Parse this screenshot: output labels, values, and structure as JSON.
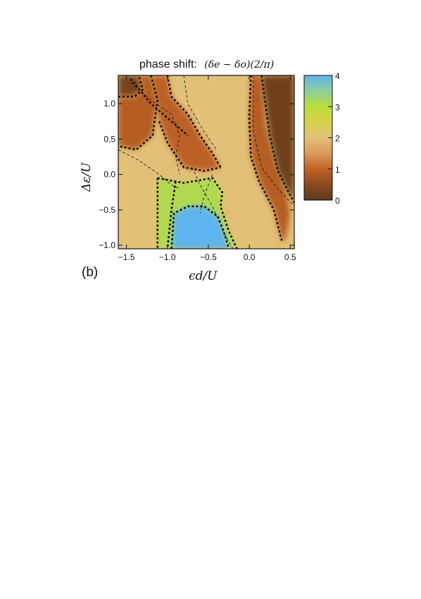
{
  "chart_data": {
    "type": "heatmap",
    "title_prefix": "phase shift:",
    "title_formula": "(δe − δo)(2/π)",
    "xlabel": "ϵd/U",
    "ylabel": "Δε/U",
    "panel_label": "(b)",
    "xlim": [
      -1.6,
      0.55
    ],
    "ylim": [
      -1.05,
      1.4
    ],
    "x_ticks": [
      {
        "value": -1.5,
        "label": "−1.5"
      },
      {
        "value": -1.0,
        "label": "−1.0"
      },
      {
        "value": -0.5,
        "label": "−0.5"
      },
      {
        "value": 0.0,
        "label": "0.0"
      },
      {
        "value": 0.5,
        "label": "0.5"
      }
    ],
    "y_ticks": [
      {
        "value": -1.0,
        "label": "−1.0"
      },
      {
        "value": -0.5,
        "label": "−0.5"
      },
      {
        "value": 0.0,
        "label": "0.0"
      },
      {
        "value": 0.5,
        "label": "0.5"
      },
      {
        "value": 1.0,
        "label": "1.0"
      }
    ],
    "colorbar": {
      "min": 0,
      "max": 4,
      "ticks": [
        {
          "value": 0,
          "label": "0"
        },
        {
          "value": 1,
          "label": "1"
        },
        {
          "value": 2,
          "label": "2"
        },
        {
          "value": 3,
          "label": "3"
        },
        {
          "value": 4,
          "label": "4"
        }
      ],
      "stops": [
        {
          "value": 0.0,
          "color": "#5a3a20"
        },
        {
          "value": 0.5,
          "color": "#8b4a1e"
        },
        {
          "value": 1.0,
          "color": "#c06226"
        },
        {
          "value": 1.5,
          "color": "#d99a5c"
        },
        {
          "value": 2.0,
          "color": "#e2c078"
        },
        {
          "value": 2.5,
          "color": "#d6d24a"
        },
        {
          "value": 3.0,
          "color": "#b9dc3c"
        },
        {
          "value": 3.5,
          "color": "#8ecf9e"
        },
        {
          "value": 4.0,
          "color": "#5fb3ee"
        }
      ]
    },
    "regions": [
      {
        "name": "top-left-dark",
        "value": 0.3,
        "polygon": [
          [
            -1.6,
            1.4
          ],
          [
            -1.35,
            1.4
          ],
          [
            -1.3,
            1.2
          ],
          [
            -1.4,
            1.1
          ],
          [
            -1.6,
            1.1
          ]
        ]
      },
      {
        "name": "upper-left-band",
        "value": 0.9,
        "polygon": [
          [
            -1.6,
            1.1
          ],
          [
            -1.4,
            1.1
          ],
          [
            -1.3,
            1.2
          ],
          [
            -1.35,
            1.4
          ],
          [
            -1.2,
            1.4
          ],
          [
            -1.12,
            1.05
          ],
          [
            -1.18,
            0.55
          ],
          [
            -1.38,
            0.35
          ],
          [
            -1.6,
            0.4
          ]
        ]
      },
      {
        "name": "center-tilted-band",
        "value": 0.95,
        "polygon": [
          [
            -1.2,
            1.4
          ],
          [
            -1.0,
            1.4
          ],
          [
            -0.95,
            1.1
          ],
          [
            -0.75,
            0.85
          ],
          [
            -0.6,
            0.55
          ],
          [
            -0.45,
            0.3
          ],
          [
            -0.35,
            0.1
          ],
          [
            -0.55,
            0.05
          ],
          [
            -0.8,
            0.1
          ],
          [
            -1.0,
            0.45
          ],
          [
            -1.1,
            0.75
          ]
        ]
      },
      {
        "name": "right-orange-band",
        "value": 0.9,
        "polygon": [
          [
            0.02,
            1.4
          ],
          [
            0.15,
            1.4
          ],
          [
            0.2,
            0.7
          ],
          [
            0.32,
            0.15
          ],
          [
            0.45,
            -0.25
          ],
          [
            0.5,
            -0.55
          ],
          [
            0.45,
            -0.9
          ],
          [
            0.4,
            -0.95
          ],
          [
            0.3,
            -0.5
          ],
          [
            0.12,
            -0.1
          ],
          [
            0.02,
            0.25
          ],
          [
            0.0,
            0.8
          ]
        ]
      },
      {
        "name": "right-dark-wedge",
        "value": 0.2,
        "polygon": [
          [
            0.15,
            1.4
          ],
          [
            0.55,
            1.4
          ],
          [
            0.55,
            -0.4
          ],
          [
            0.48,
            -0.25
          ],
          [
            0.35,
            0.05
          ],
          [
            0.25,
            0.55
          ]
        ]
      },
      {
        "name": "green-plateau",
        "value": 3.1,
        "polygon": [
          [
            -1.12,
            -0.05
          ],
          [
            -0.8,
            -0.12
          ],
          [
            -0.45,
            -0.05
          ],
          [
            -0.33,
            -0.25
          ],
          [
            -0.35,
            -0.45
          ],
          [
            -0.25,
            -0.8
          ],
          [
            -0.15,
            -1.05
          ],
          [
            -1.12,
            -1.05
          ]
        ]
      },
      {
        "name": "blue-core",
        "value": 4.0,
        "polygon": [
          [
            -0.95,
            -1.05
          ],
          [
            -0.92,
            -0.55
          ],
          [
            -0.75,
            -0.45
          ],
          [
            -0.55,
            -0.45
          ],
          [
            -0.38,
            -0.6
          ],
          [
            -0.3,
            -0.85
          ],
          [
            -0.25,
            -1.05
          ]
        ]
      }
    ],
    "contours_thick": [
      [
        [
          -1.6,
          1.1
        ],
        [
          -1.4,
          1.1
        ],
        [
          -1.3,
          1.2
        ],
        [
          -1.35,
          1.4
        ]
      ],
      [
        [
          -1.2,
          1.4
        ],
        [
          -1.12,
          1.05
        ],
        [
          -1.18,
          0.55
        ],
        [
          -1.38,
          0.35
        ],
        [
          -1.6,
          0.4
        ]
      ],
      [
        [
          -1.0,
          1.4
        ],
        [
          -0.95,
          1.1
        ],
        [
          -0.75,
          0.85
        ],
        [
          -0.6,
          0.55
        ],
        [
          -0.45,
          0.3
        ],
        [
          -0.35,
          0.1
        ]
      ],
      [
        [
          -1.1,
          0.75
        ],
        [
          -1.0,
          0.45
        ],
        [
          -0.8,
          0.1
        ],
        [
          -0.55,
          0.05
        ],
        [
          -0.35,
          0.1
        ]
      ],
      [
        [
          -1.12,
          -0.05
        ],
        [
          -0.8,
          -0.12
        ],
        [
          -0.45,
          -0.05
        ],
        [
          -0.33,
          -0.25
        ],
        [
          -0.35,
          -0.45
        ],
        [
          -0.25,
          -0.8
        ],
        [
          -0.15,
          -1.05
        ]
      ],
      [
        [
          -1.12,
          -0.05
        ],
        [
          -1.12,
          -1.05
        ]
      ],
      [
        [
          -0.95,
          -1.05
        ],
        [
          -0.92,
          -0.55
        ],
        [
          -0.75,
          -0.45
        ],
        [
          -0.55,
          -0.45
        ],
        [
          -0.38,
          -0.6
        ],
        [
          -0.3,
          -0.85
        ],
        [
          -0.25,
          -1.05
        ]
      ],
      [
        [
          -0.9,
          -0.1
        ],
        [
          -0.95,
          -0.5
        ],
        [
          -1.0,
          -1.05
        ]
      ],
      [
        [
          0.02,
          1.4
        ],
        [
          0.0,
          0.8
        ],
        [
          0.02,
          0.25
        ],
        [
          0.12,
          -0.1
        ],
        [
          0.3,
          -0.5
        ],
        [
          0.4,
          -0.95
        ]
      ],
      [
        [
          0.15,
          1.4
        ],
        [
          0.25,
          0.55
        ],
        [
          0.35,
          0.05
        ],
        [
          0.48,
          -0.25
        ],
        [
          0.55,
          -0.4
        ]
      ],
      [
        [
          -1.45,
          1.35
        ],
        [
          -1.2,
          1.0
        ],
        [
          -0.95,
          0.75
        ],
        [
          -0.75,
          0.55
        ]
      ]
    ],
    "contours_thin": [
      [
        [
          -1.6,
          0.35
        ],
        [
          -1.35,
          0.2
        ],
        [
          -1.1,
          0.0
        ],
        [
          -0.95,
          -0.15
        ],
        [
          -0.85,
          -0.2
        ]
      ],
      [
        [
          -1.45,
          1.3
        ],
        [
          -1.2,
          1.05
        ],
        [
          -0.95,
          0.85
        ],
        [
          -0.85,
          0.55
        ],
        [
          -0.9,
          0.25
        ],
        [
          -0.85,
          0.0
        ]
      ],
      [
        [
          -0.45,
          0.0
        ],
        [
          -0.55,
          -0.3
        ],
        [
          -0.6,
          -0.55
        ]
      ],
      [
        [
          -0.7,
          0.1
        ],
        [
          -0.6,
          -0.15
        ],
        [
          -0.45,
          -0.45
        ],
        [
          -0.3,
          -0.85
        ],
        [
          -0.2,
          -1.05
        ]
      ],
      [
        [
          0.05,
          1.4
        ],
        [
          0.05,
          0.6
        ],
        [
          0.15,
          0.1
        ],
        [
          0.35,
          -0.2
        ],
        [
          0.55,
          -0.45
        ]
      ],
      [
        [
          -0.8,
          1.4
        ],
        [
          -0.75,
          1.0
        ],
        [
          -0.55,
          0.6
        ],
        [
          -0.4,
          0.35
        ]
      ]
    ]
  }
}
